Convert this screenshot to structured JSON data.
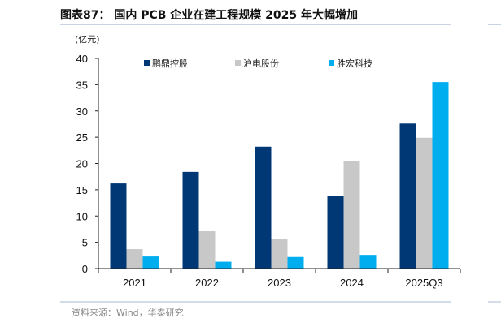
{
  "title": "图表87：  国内 PCB 企业在建工程规模 2025 年大幅增加",
  "source": "资料来源：Wind，华泰研究",
  "chart_data": {
    "type": "bar",
    "title": "图表87：  国内 PCB 企业在建工程规模 2025 年大幅增加",
    "ylabel": "(亿元)",
    "xlabel": "",
    "categories": [
      "2021",
      "2022",
      "2023",
      "2024",
      "2025Q3"
    ],
    "ylim": [
      0,
      40
    ],
    "yticks": [
      0,
      5,
      10,
      15,
      20,
      25,
      30,
      35,
      40
    ],
    "grid": false,
    "legend_position": "top",
    "series": [
      {
        "name": "鹏鼎控股",
        "color": "#003876",
        "values": [
          16.2,
          18.4,
          23.2,
          13.9,
          27.6
        ]
      },
      {
        "name": "沪电股份",
        "color": "#C8C8C8",
        "values": [
          3.7,
          7.1,
          5.7,
          20.5,
          24.9
        ]
      },
      {
        "name": "胜宏科技",
        "color": "#00AEEF",
        "values": [
          2.3,
          1.3,
          2.2,
          2.6,
          35.5
        ]
      }
    ]
  }
}
